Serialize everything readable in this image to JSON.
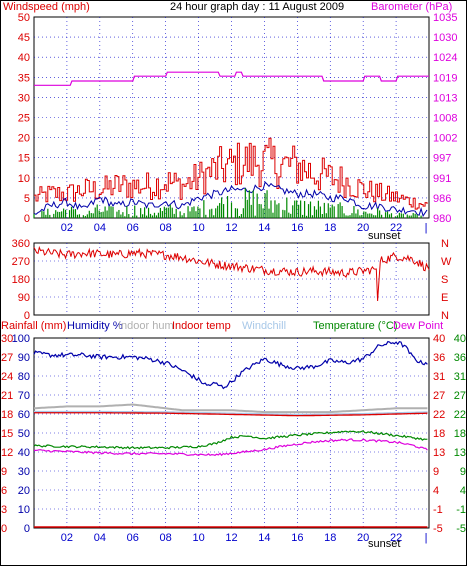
{
  "colors": {
    "red": "#dd0000",
    "magenta": "#dd00dd",
    "green": "#008800",
    "blue": "#0000aa",
    "grey": "#b0b0b0",
    "lightblue": "#a8c8e8",
    "gridblue": "#0000cc",
    "frame": "#000000"
  },
  "chart_data": [
    {
      "type": "line",
      "title": "24 hour graph day : 11 August 2009",
      "y_left_label": "Windspeed (mph)",
      "y_right_label": "Barometer (hPa)",
      "ylim_left": [
        0,
        50
      ],
      "ylim_right": [
        980,
        1035
      ],
      "left_ticks": [
        "0",
        "5",
        "10",
        "15",
        "20",
        "25",
        "30",
        "35",
        "40",
        "45",
        "50"
      ],
      "right_ticks": [
        "980",
        "986",
        "991",
        "997",
        "1002",
        "1008",
        "1013",
        "1019",
        "1024",
        "1030",
        "1035"
      ],
      "x_ticks": [
        "02",
        "04",
        "06",
        "08",
        "10",
        "12",
        "14",
        "16",
        "18",
        "20",
        "22"
      ],
      "sunset_label": "sunset",
      "x_range_hours": [
        0,
        24
      ],
      "series": [
        {
          "name": "Barometer",
          "color": "magenta",
          "axis": "right",
          "x": [
            0,
            2.2,
            2.3,
            6,
            6.1,
            8,
            8.1,
            11.2,
            11.3,
            12.2,
            12.3,
            12.6,
            12.7,
            16,
            17.5,
            17.6,
            20,
            20.1,
            21,
            21.1,
            22,
            22.1,
            24
          ],
          "values": [
            1016.3,
            1016.3,
            1017.5,
            1017.5,
            1018.8,
            1018.8,
            1019.9,
            1019.9,
            1018.8,
            1018.8,
            1019.9,
            1019.9,
            1018.8,
            1018.8,
            1018.8,
            1017.5,
            1017.5,
            1018.8,
            1018.8,
            1017.5,
            1017.5,
            1018.8,
            1018.8
          ]
        },
        {
          "name": "Wind gust",
          "color": "red",
          "axis": "left",
          "style": "noisy",
          "x": [
            0,
            1,
            2,
            3,
            4,
            5,
            6,
            7,
            8,
            9,
            10,
            11,
            12,
            13,
            14,
            15,
            16,
            17,
            18,
            19,
            20,
            21,
            22,
            23,
            24
          ],
          "values": [
            5,
            6,
            6,
            7,
            7,
            8,
            8,
            8,
            9,
            8,
            10,
            12,
            13,
            14,
            14,
            13,
            13,
            11,
            10,
            9,
            7,
            6,
            5,
            4,
            3
          ]
        },
        {
          "name": "Wind average",
          "color": "blue",
          "axis": "left",
          "style": "smooth",
          "x": [
            0,
            1,
            2,
            3,
            4,
            5,
            6,
            7,
            8,
            9,
            10,
            11,
            12,
            13,
            14,
            15,
            16,
            17,
            18,
            19,
            20,
            21,
            22,
            23,
            24
          ],
          "values": [
            1,
            3,
            4,
            2,
            5,
            3,
            4,
            3,
            4,
            3,
            5,
            6,
            7,
            7,
            8,
            7,
            6,
            6,
            5,
            5,
            3,
            3,
            2,
            2,
            1
          ]
        },
        {
          "name": "Wind",
          "color": "green",
          "axis": "left",
          "style": "bars",
          "x": [
            0,
            1,
            2,
            3,
            4,
            5,
            6,
            7,
            8,
            9,
            10,
            11,
            12,
            13,
            14,
            15,
            16,
            17,
            18,
            19,
            20,
            21,
            22,
            23,
            24
          ],
          "values": [
            1,
            2,
            3,
            1,
            3,
            2,
            3,
            2,
            3,
            2,
            3,
            5,
            5,
            6,
            6,
            5,
            4,
            4,
            3,
            3,
            2,
            2,
            1,
            1,
            0
          ]
        }
      ]
    },
    {
      "type": "line",
      "ylim": [
        0,
        360
      ],
      "left_ticks": [
        "0",
        "90",
        "180",
        "270",
        "360"
      ],
      "right_ticks": [
        "N",
        "E",
        "S",
        "W",
        "N"
      ],
      "series": [
        {
          "name": "Wind direction",
          "color": "red",
          "style": "noisy",
          "x": [
            0,
            1,
            2,
            3,
            4,
            5,
            6,
            7,
            8,
            9,
            10,
            11,
            12,
            13,
            14,
            15,
            16,
            17,
            18,
            19,
            20,
            20.8,
            20.9,
            21,
            22,
            23,
            24
          ],
          "values": [
            320,
            310,
            300,
            310,
            305,
            300,
            310,
            305,
            300,
            290,
            270,
            255,
            245,
            235,
            225,
            220,
            215,
            220,
            215,
            210,
            220,
            230,
            30,
            270,
            295,
            280,
            230
          ]
        }
      ]
    },
    {
      "type": "line",
      "legend": [
        {
          "text": "Rainfall (mm)",
          "color": "red"
        },
        {
          "text": "Humidity %",
          "color": "blue"
        },
        {
          "text": "Indoor hum",
          "color": "grey"
        },
        {
          "text": "Indoor temp",
          "color": "red"
        },
        {
          "text": "Windchill",
          "color": "lightblue"
        },
        {
          "text": "Temperature (°C)",
          "color": "green"
        },
        {
          "text": "Dew Point",
          "color": "magenta"
        }
      ],
      "rain_ticks": [
        "0",
        "3",
        "6",
        "9",
        "12",
        "15",
        "18",
        "21",
        "24",
        "27",
        "30"
      ],
      "hum_ticks": [
        "0",
        "10",
        "20",
        "30",
        "40",
        "50",
        "60",
        "70",
        "80",
        "90",
        "100"
      ],
      "temp_left_ticks": [
        "-5",
        "-1",
        "4",
        "9",
        "13",
        "18",
        "22",
        "27",
        "31",
        "36",
        "40"
      ],
      "temp_right_ticks": [
        "-5",
        "-1",
        "4",
        "9",
        "13",
        "18",
        "22",
        "27",
        "31",
        "36",
        "40"
      ],
      "ylim_humidity": [
        0,
        100
      ],
      "ylim_temp": [
        -5,
        40
      ],
      "sunset_label": "sunset",
      "series": [
        {
          "name": "Humidity",
          "color": "blue",
          "axis": "humidity",
          "x": [
            0,
            1,
            2,
            3,
            4,
            5,
            6,
            7,
            8,
            9,
            10,
            10.5,
            11,
            11.5,
            12,
            12.5,
            13,
            14,
            15,
            16,
            17,
            18,
            19,
            20,
            21,
            22,
            22.5,
            23,
            23.5
          ],
          "values": [
            92,
            91,
            91,
            91,
            90,
            90,
            90,
            89,
            87,
            83,
            78,
            75,
            76,
            74,
            77,
            81,
            84,
            89,
            86,
            84,
            85,
            88,
            87,
            89,
            96,
            98,
            96,
            90,
            87
          ]
        },
        {
          "name": "Indoor humidity",
          "color": "grey",
          "axis": "humidity",
          "x": [
            0,
            2,
            4,
            6,
            7,
            8,
            9,
            10,
            12,
            14,
            16,
            18,
            20,
            22,
            24
          ],
          "values": [
            63,
            64,
            64,
            65,
            64,
            63,
            62,
            62,
            62,
            61,
            61,
            61,
            62,
            63,
            63
          ]
        },
        {
          "name": "Indoor temp",
          "color": "red",
          "axis": "temp",
          "x": [
            0,
            4,
            8,
            12,
            16,
            20,
            24
          ],
          "values": [
            22.4,
            22.4,
            22.3,
            22.0,
            21.7,
            21.9,
            22.3
          ]
        },
        {
          "name": "Windchill",
          "color": "lightblue",
          "axis": "temp",
          "x": [
            0,
            4,
            8,
            12,
            16,
            20,
            24
          ],
          "values": [
            22.6,
            22.6,
            22.5,
            22.2,
            21.9,
            22.1,
            22.5
          ]
        },
        {
          "name": "Temperature",
          "color": "green",
          "axis": "temp",
          "x": [
            0,
            2,
            4,
            6,
            8,
            10,
            11,
            12,
            13,
            14,
            15,
            16,
            17,
            18,
            19,
            20,
            21,
            22,
            23,
            24
          ],
          "values": [
            14.5,
            14.3,
            14.2,
            14.0,
            14.0,
            14.3,
            15.0,
            16.5,
            16.8,
            16.2,
            16.6,
            17.0,
            17.3,
            17.6,
            17.9,
            17.8,
            17.4,
            16.9,
            16.4,
            15.8
          ]
        },
        {
          "name": "Dew Point",
          "color": "magenta",
          "axis": "temp",
          "x": [
            0,
            2,
            4,
            6,
            8,
            10,
            11,
            12,
            13,
            14,
            15,
            16,
            17,
            18,
            19,
            20,
            21,
            22,
            23,
            24
          ],
          "values": [
            13.4,
            13.1,
            12.8,
            12.6,
            12.6,
            12.4,
            12.3,
            12.7,
            13.1,
            13.6,
            14.3,
            14.9,
            15.4,
            15.7,
            15.9,
            15.8,
            15.6,
            15.3,
            14.6,
            13.4
          ]
        },
        {
          "name": "Rainfall",
          "color": "red",
          "axis": "rain",
          "x": [
            0,
            24
          ],
          "values": [
            0,
            0
          ]
        }
      ]
    }
  ]
}
